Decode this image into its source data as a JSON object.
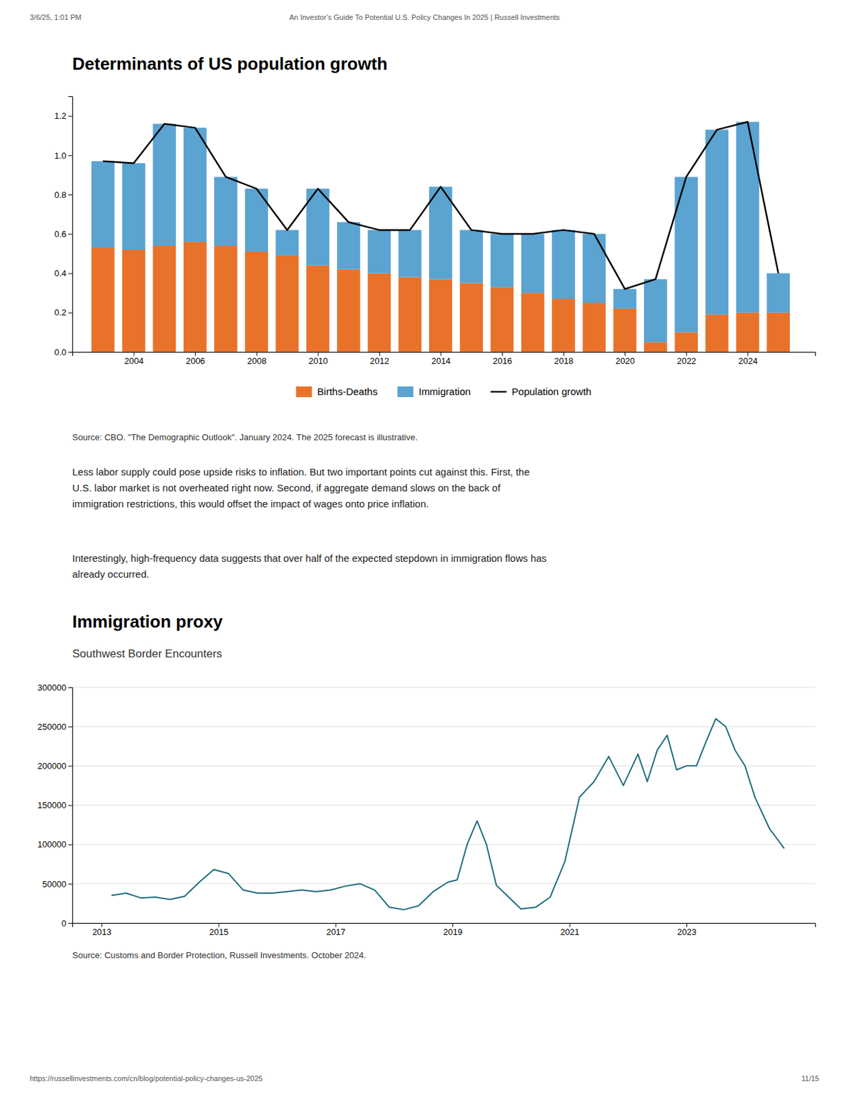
{
  "header": [
    "3/6/25, 1:01 PM",
    "An Investor’s Guide To Potential U.S. Policy Changes In 2025 | Russell Investments"
  ],
  "footer": [
    "https://russellinvestments.com/cn/blog/potential-policy-changes-us-2025",
    "11/15"
  ],
  "text": [
    [
      "Less labor supply could pose upside risks to inflation. But two important points cut against this. First, the",
      "U.S. labor market is not overheated right now. Second, if aggregate demand slows on the back of",
      "immigration restrictions, this would offset the impact of wages onto price inflation."
    ],
    [
      "Interestingly, high‑frequency data suggests that over half of the expected stepdown in immigration flows has",
      "already occurred."
    ]
  ],
  "chart_data": [
    {
      "type": "bar",
      "title": "Determinants of US population growth",
      "annotations": [
        "Source: CBO. \"The Demographic Outlook\". January 2024. The 2025 forecast is illustrative."
      ],
      "stacked": true,
      "legend": "bottom",
      "grid": false,
      "x": [
        2003,
        2004,
        2005,
        2006,
        2007,
        2008,
        2009,
        2010,
        2011,
        2012,
        2013,
        2014,
        2015,
        2016,
        2017,
        2018,
        2019,
        2020,
        2021,
        2022,
        2023,
        2024,
        2025
      ],
      "series": [
        {
          "name": "Births-Deaths",
          "type": "bar",
          "color": "#E8722A",
          "values": [
            0.53,
            0.52,
            0.54,
            0.56,
            0.54,
            0.51,
            0.49,
            0.44,
            0.42,
            0.4,
            0.38,
            0.37,
            0.35,
            0.33,
            0.3,
            0.27,
            0.25,
            0.22,
            0.05,
            0.1,
            0.19,
            0.2,
            0.2
          ]
        },
        {
          "name": "Immigration",
          "type": "bar",
          "color": "#5BA3D0",
          "values": [
            0.44,
            0.44,
            0.62,
            0.58,
            0.35,
            0.32,
            0.13,
            0.39,
            0.24,
            0.22,
            0.24,
            0.47,
            0.27,
            0.27,
            0.3,
            0.35,
            0.35,
            0.1,
            0.32,
            0.79,
            0.94,
            0.97,
            0.2
          ]
        },
        {
          "name": "Population growth",
          "type": "line",
          "color": "#000000",
          "values": [
            0.97,
            0.96,
            1.16,
            1.14,
            0.89,
            0.83,
            0.62,
            0.83,
            0.66,
            0.62,
            0.62,
            0.84,
            0.62,
            0.6,
            0.6,
            0.62,
            0.6,
            0.32,
            0.37,
            0.89,
            1.13,
            1.17,
            0.4
          ]
        }
      ],
      "xlim": [
        2002.0,
        2026.2
      ],
      "xticks": [
        2004,
        2006,
        2008,
        2010,
        2012,
        2014,
        2016,
        2018,
        2020,
        2022,
        2024
      ],
      "ylim": [
        0.0,
        1.3
      ],
      "yticks": [
        {
          "value": 0,
          "label": "0.0"
        },
        0.2,
        0.4,
        0.6,
        0.8,
        {
          "value": 1,
          "label": "1.0"
        },
        1.2
      ]
    },
    {
      "type": "line",
      "title": "Immigration proxy",
      "subtitle": "Southwest Border Encounters",
      "annotations": [
        "Source: Customs and Border Protection, Russell Investments. October 2024."
      ],
      "grid": true,
      "x": [
        2013.17,
        2013.42,
        2013.67,
        2013.92,
        2014.17,
        2014.42,
        2014.67,
        2014.92,
        2015.17,
        2015.42,
        2015.67,
        2015.92,
        2016.17,
        2016.42,
        2016.67,
        2016.92,
        2017.17,
        2017.42,
        2017.67,
        2017.92,
        2018.17,
        2018.42,
        2018.67,
        2018.92,
        2019.08,
        2019.25,
        2019.42,
        2019.58,
        2019.75,
        2019.92,
        2020.17,
        2020.42,
        2020.67,
        2020.92,
        2021.17,
        2021.42,
        2021.67,
        2021.92,
        2022.17,
        2022.33,
        2022.5,
        2022.67,
        2022.83,
        2023.0,
        2023.17,
        2023.33,
        2023.5,
        2023.67,
        2023.83,
        2024.0,
        2024.17,
        2024.42,
        2024.67
      ],
      "series": [
        {
          "color": "#1B6B7B",
          "values": [
            35000,
            38000,
            32000,
            33000,
            30000,
            34000,
            52000,
            68000,
            63000,
            42000,
            38000,
            38000,
            40000,
            42000,
            40000,
            42000,
            47000,
            50000,
            42000,
            20000,
            17000,
            22000,
            40000,
            52000,
            55000,
            100000,
            130000,
            100000,
            48000,
            36000,
            18000,
            20000,
            33000,
            78000,
            160000,
            180000,
            212000,
            175000,
            215000,
            180000,
            220000,
            239000,
            195000,
            200000,
            200000,
            230000,
            260000,
            250000,
            220000,
            200000,
            160000,
            120000,
            95000
          ]
        }
      ],
      "xlim": [
        2012.5,
        2025.2
      ],
      "xticks": [
        2013,
        2015,
        2017,
        2019,
        2021,
        2023
      ],
      "ylim": [
        0,
        300000
      ],
      "yticks": [
        0,
        50000,
        100000,
        150000,
        200000,
        250000,
        300000
      ]
    }
  ]
}
